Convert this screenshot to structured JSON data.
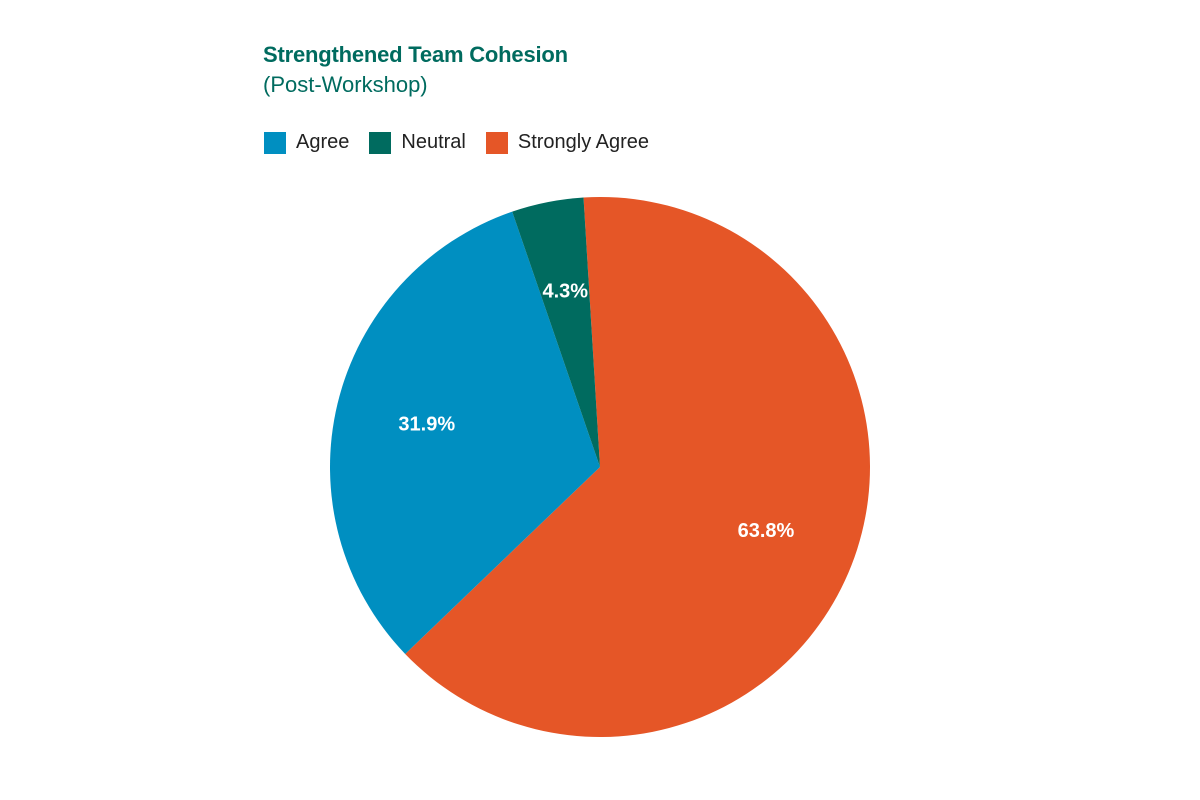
{
  "chart_data": {
    "type": "pie",
    "title": "Strengthened Team Cohesion",
    "subtitle": "(Post-Workshop)",
    "legend": [
      {
        "label": "Agree",
        "color": "#008fc1"
      },
      {
        "label": "Neutral",
        "color": "#006b5f"
      },
      {
        "label": "Strongly Agree",
        "color": "#e55627"
      }
    ],
    "slices": [
      {
        "name": "Strongly Agree",
        "value": 63.8,
        "label": "63.8%",
        "color": "#e55627"
      },
      {
        "name": "Agree",
        "value": 31.9,
        "label": "31.9%",
        "color": "#008fc1"
      },
      {
        "name": "Neutral",
        "value": 4.3,
        "label": "4.3%",
        "color": "#006b5f"
      }
    ],
    "legend_position": "top-left"
  }
}
